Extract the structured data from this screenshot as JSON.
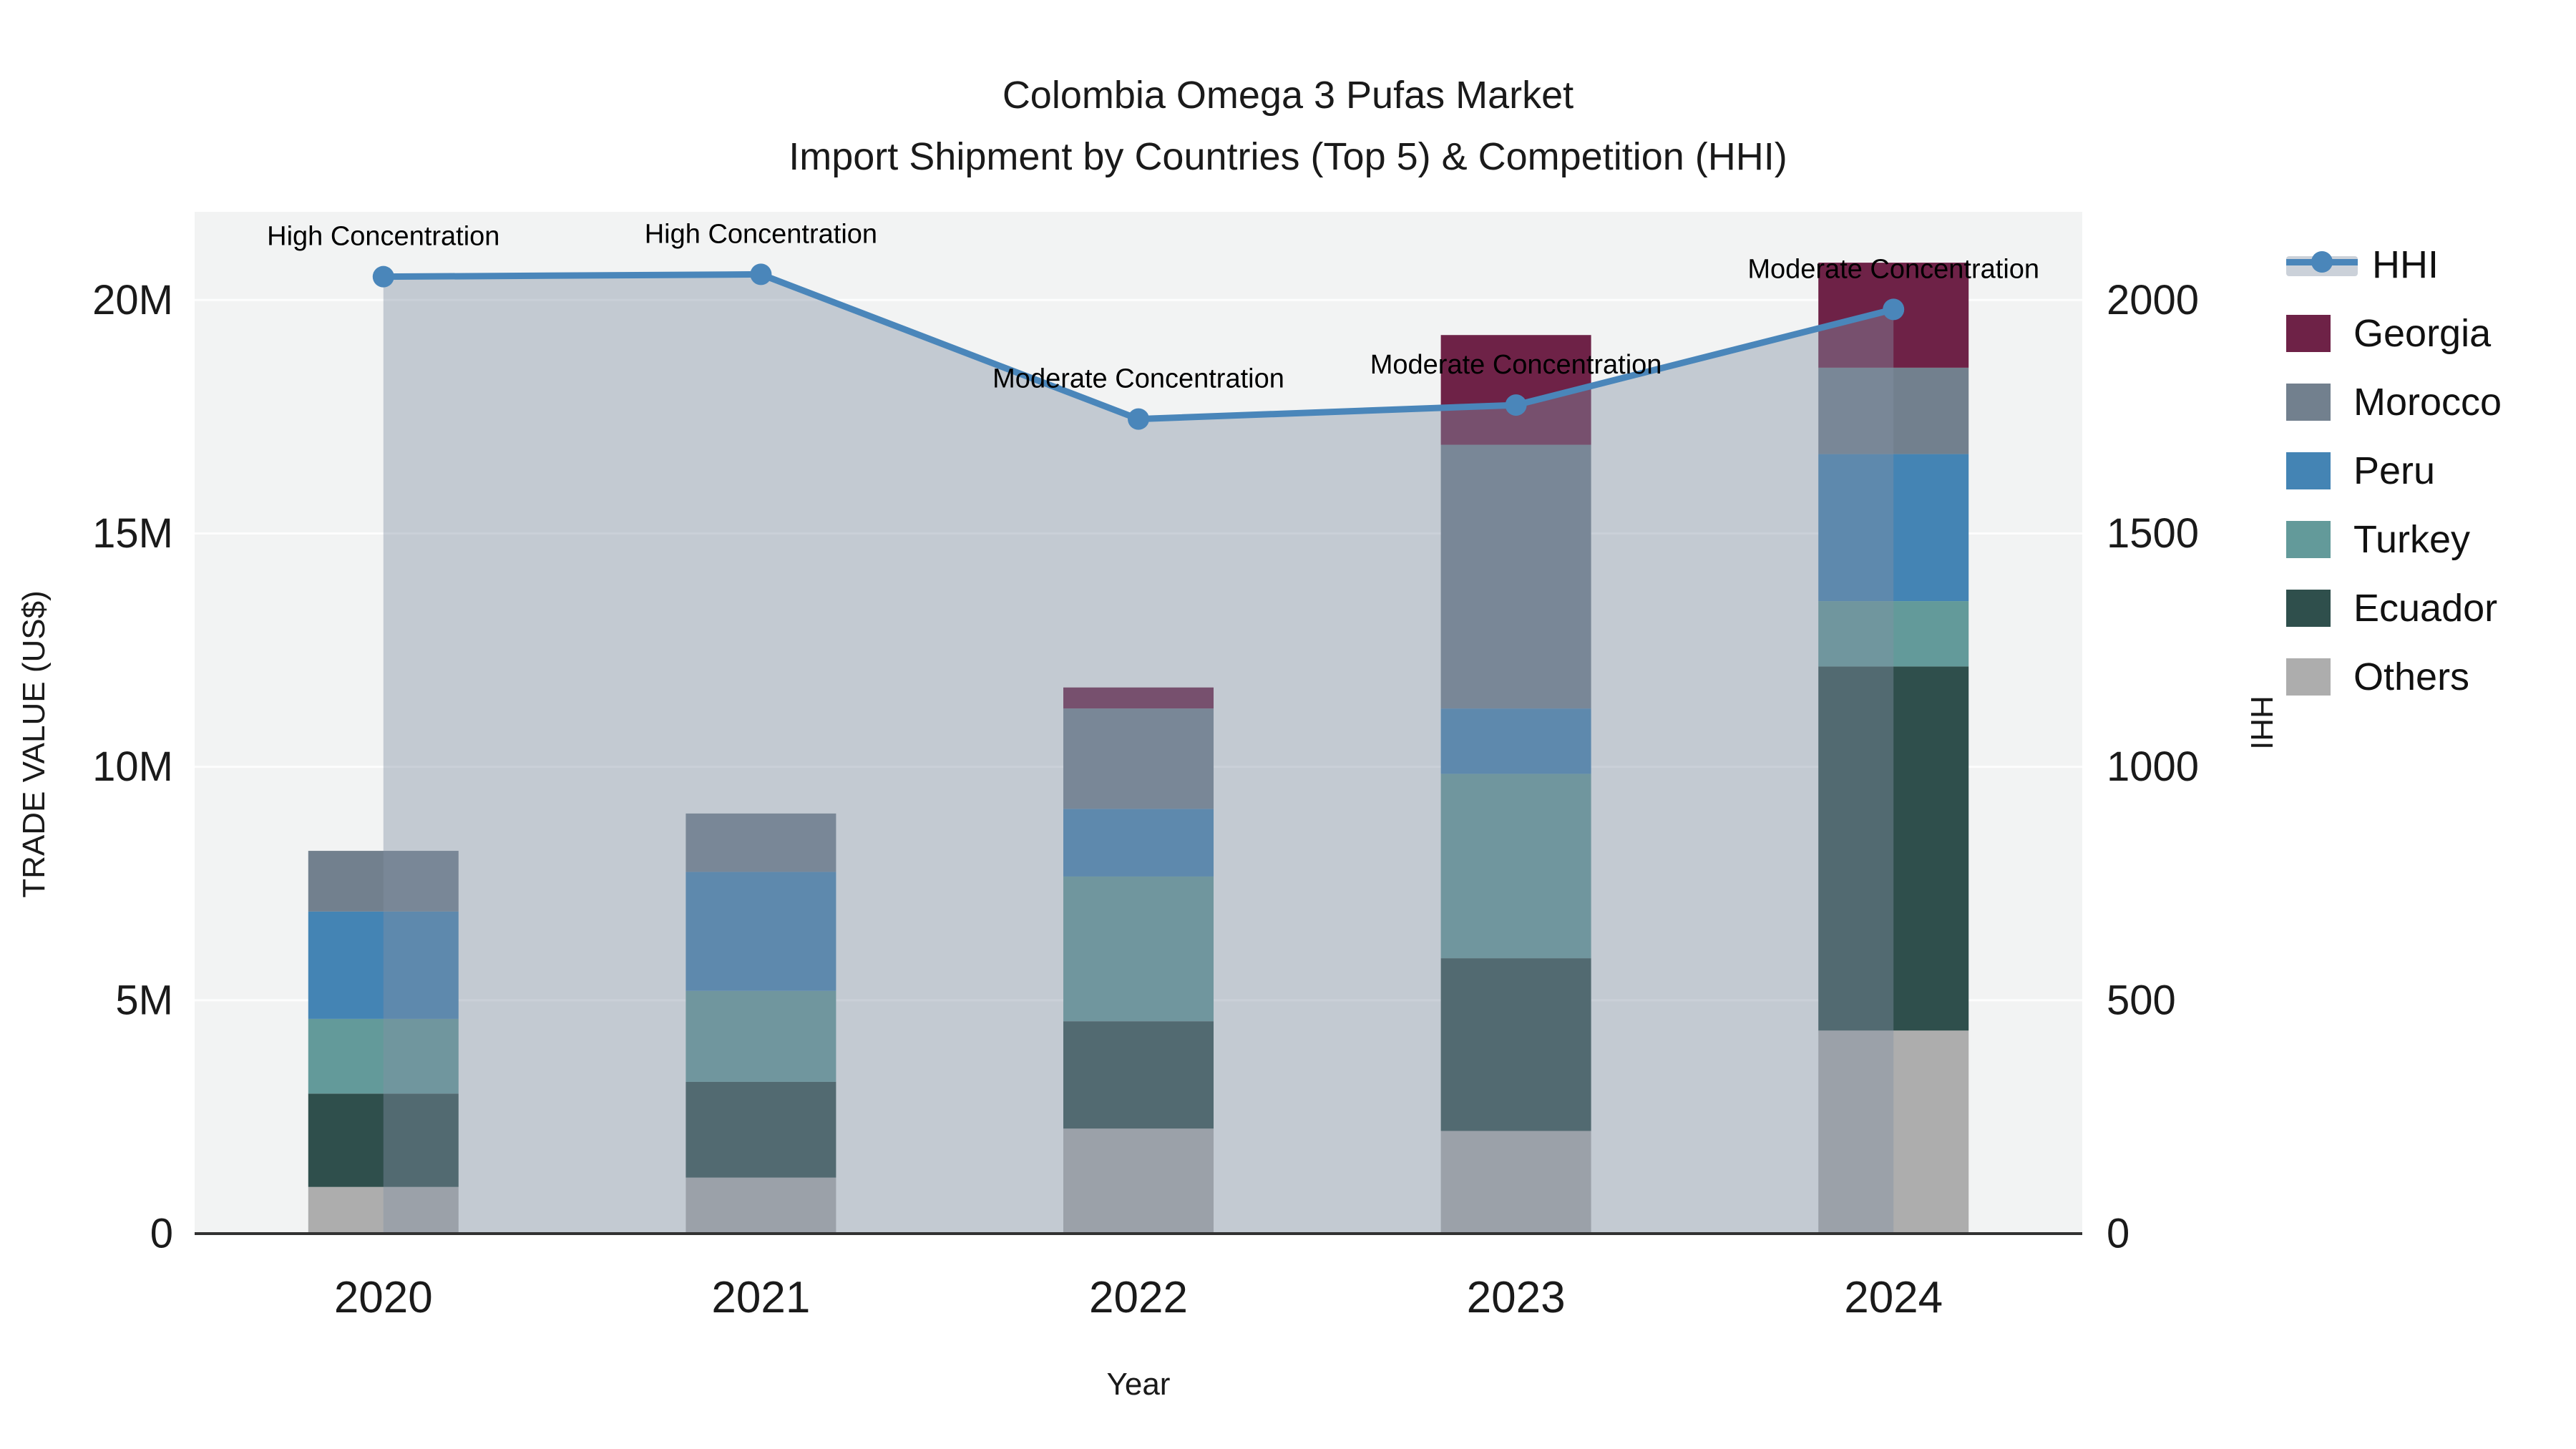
{
  "title": {
    "line1": "Colombia Omega 3 Pufas Market",
    "line2": "Import Shipment by Countries (Top 5) & Competition (HHI)"
  },
  "chart_data": {
    "type": "bar",
    "subtype": "stacked-bar-with-line",
    "title": "Colombia Omega 3 Pufas Market — Import Shipment by Countries (Top 5) & Competition (HHI)",
    "xlabel": "Year",
    "ylabel_left": "TRADE VALUE (US$)",
    "ylabel_right": "HHI",
    "categories": [
      "2020",
      "2021",
      "2022",
      "2023",
      "2024"
    ],
    "series": [
      {
        "name": "Others",
        "color": "#adadad",
        "values_musd": [
          1.0,
          1.2,
          2.25,
          2.2,
          4.35
        ]
      },
      {
        "name": "Ecuador",
        "color": "#2f4f4c",
        "values_musd": [
          2.0,
          2.05,
          2.3,
          3.7,
          7.8
        ]
      },
      {
        "name": "Turkey",
        "color": "#639a9a",
        "values_musd": [
          1.6,
          1.95,
          3.1,
          3.95,
          1.4
        ]
      },
      {
        "name": "Peru",
        "color": "#4484b4",
        "values_musd": [
          2.3,
          2.55,
          1.45,
          1.4,
          3.15
        ]
      },
      {
        "name": "Morocco",
        "color": "#72808e",
        "values_musd": [
          1.3,
          1.25,
          2.15,
          5.65,
          1.85
        ]
      },
      {
        "name": "Georgia",
        "color": "#6e2247",
        "values_musd": [
          0,
          0,
          0.45,
          2.35,
          2.25
        ]
      }
    ],
    "bar_totals_musd": [
      8.2,
      9.0,
      11.7,
      19.25,
      20.8
    ],
    "line_series": {
      "name": "HHI",
      "values": [
        2050,
        2055,
        1745,
        1775,
        1980
      ],
      "color": "#4a86ba",
      "area_fill": "rgba(130,145,165,0.42)"
    },
    "annotations": [
      {
        "category": "2020",
        "text": "High Concentration"
      },
      {
        "category": "2021",
        "text": "High Concentration"
      },
      {
        "category": "2022",
        "text": "Moderate Concentration"
      },
      {
        "category": "2023",
        "text": "Moderate Concentration"
      },
      {
        "category": "2024",
        "text": "Moderate Concentration"
      }
    ],
    "yticks_left": {
      "labels": [
        "0",
        "5M",
        "10M",
        "15M",
        "20M"
      ],
      "values_musd": [
        0,
        5,
        10,
        15,
        20
      ]
    },
    "yticks_right": {
      "labels": [
        "0",
        "500",
        "1000",
        "1500",
        "2000"
      ],
      "values": [
        0,
        500,
        1000,
        1500,
        2000
      ]
    },
    "ylim_left_musd": [
      0,
      21.89
    ],
    "ylim_right": [
      0,
      2189
    ],
    "grid": true,
    "legend_position": "right",
    "style": {
      "plot_bg": "#f2f3f3",
      "paper_bg": "#ffffff",
      "gridline_color": "#ffffff",
      "axisline_color": "#323232",
      "text_color": "#1a1a1a"
    }
  },
  "legend": {
    "items": [
      {
        "label": "HHI",
        "type": "line",
        "color": "#4a86ba",
        "band": "rgba(130,145,165,0.42)"
      },
      {
        "label": "Georgia",
        "type": "square",
        "color": "#6e2247"
      },
      {
        "label": "Morocco",
        "type": "square",
        "color": "#72808e"
      },
      {
        "label": "Peru",
        "type": "square",
        "color": "#4484b4"
      },
      {
        "label": "Turkey",
        "type": "square",
        "color": "#639a9a"
      },
      {
        "label": "Ecuador",
        "type": "square",
        "color": "#2f4f4c"
      },
      {
        "label": "Others",
        "type": "square",
        "color": "#adadad"
      }
    ]
  }
}
